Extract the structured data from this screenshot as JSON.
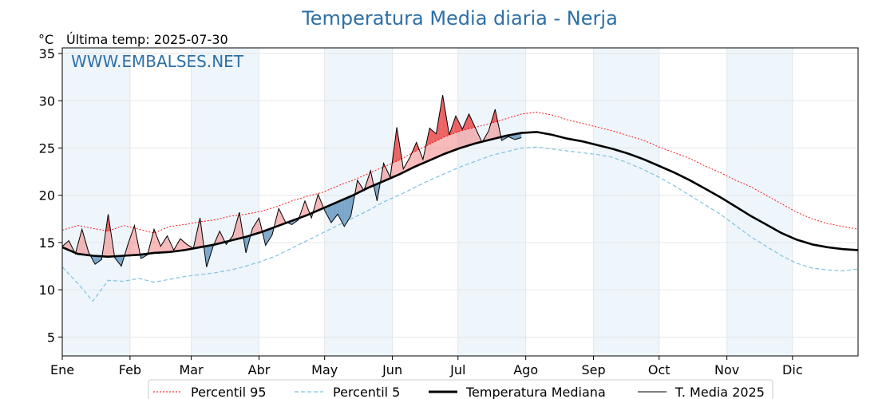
{
  "header": {
    "title": "Temperatura Media diaria - Nerja",
    "unit": "°C",
    "last_temp": "Última temp: 2025-07-30",
    "watermark": "WWW.EMBALSES.NET"
  },
  "colors": {
    "title": "#2e6fa5",
    "p95": "#ff0000",
    "p5": "#7ec3dc",
    "median": "#000000",
    "media2025": "#000000",
    "above_fill": "#f08080",
    "above_fill_strong": "#e8474a",
    "below_fill": "#4682b4",
    "month_band": "#eef5fb",
    "grid": "#e6e6e6"
  },
  "chart_data": {
    "type": "line",
    "title": "Temperatura Media diaria - Nerja",
    "ylabel": "°C",
    "ylim": [
      3,
      35.6
    ],
    "xlim": [
      1,
      365
    ],
    "yticks": [
      5,
      10,
      15,
      20,
      25,
      30,
      35
    ],
    "months": [
      "Ene",
      "Feb",
      "Mar",
      "Abr",
      "May",
      "Jun",
      "Jul",
      "Ago",
      "Sep",
      "Oct",
      "Nov",
      "Dic"
    ],
    "month_start_days": [
      1,
      32,
      60,
      91,
      121,
      152,
      182,
      213,
      244,
      274,
      305,
      335
    ],
    "grid": true,
    "legend_position": "bottom",
    "series": [
      {
        "name": "Percentil 95",
        "style": "dotted-red",
        "x": [
          1,
          8,
          15,
          22,
          29,
          36,
          43,
          50,
          57,
          64,
          71,
          78,
          85,
          92,
          99,
          106,
          113,
          120,
          127,
          134,
          141,
          148,
          155,
          162,
          169,
          176,
          183,
          190,
          197,
          204,
          211,
          218,
          225,
          232,
          239,
          246,
          253,
          260,
          267,
          274,
          281,
          288,
          295,
          302,
          309,
          316,
          323,
          330,
          337,
          344,
          351,
          358,
          365
        ],
        "y": [
          16.3,
          16.8,
          16.5,
          16.2,
          16.8,
          16.4,
          16.0,
          16.7,
          16.9,
          17.2,
          17.4,
          17.8,
          18.0,
          18.3,
          18.8,
          19.4,
          19.9,
          20.3,
          21.0,
          21.6,
          22.3,
          23.0,
          23.7,
          24.6,
          25.4,
          26.2,
          26.8,
          27.2,
          27.6,
          28.1,
          28.6,
          28.8,
          28.5,
          28.0,
          27.6,
          27.2,
          26.8,
          26.3,
          25.8,
          25.1,
          24.5,
          23.9,
          23.1,
          22.4,
          21.6,
          20.9,
          20.0,
          19.1,
          18.2,
          17.5,
          17.0,
          16.7,
          16.4
        ]
      },
      {
        "name": "Percentil 5",
        "style": "dashed-lightblue",
        "x": [
          1,
          8,
          15,
          22,
          29,
          36,
          43,
          50,
          57,
          64,
          71,
          78,
          85,
          92,
          99,
          106,
          113,
          120,
          127,
          134,
          141,
          148,
          155,
          162,
          169,
          176,
          183,
          190,
          197,
          204,
          211,
          218,
          225,
          232,
          239,
          246,
          253,
          260,
          267,
          274,
          281,
          288,
          295,
          302,
          309,
          316,
          323,
          330,
          337,
          344,
          351,
          358,
          365
        ],
        "y": [
          12.4,
          10.7,
          8.8,
          11.0,
          10.9,
          11.2,
          10.8,
          11.1,
          11.4,
          11.6,
          11.8,
          12.1,
          12.5,
          13.0,
          13.6,
          14.4,
          15.2,
          16.0,
          16.8,
          17.6,
          18.4,
          19.3,
          20.0,
          20.8,
          21.6,
          22.3,
          23.0,
          23.6,
          24.2,
          24.6,
          25.0,
          25.1,
          24.9,
          24.7,
          24.5,
          24.3,
          24.0,
          23.4,
          22.7,
          21.9,
          21.0,
          20.0,
          19.0,
          18.0,
          16.8,
          15.6,
          14.6,
          13.6,
          12.8,
          12.3,
          12.1,
          12.0,
          12.2
        ]
      },
      {
        "name": "Temperatura Mediana",
        "style": "thick-black",
        "x": [
          1,
          8,
          15,
          22,
          29,
          36,
          43,
          50,
          57,
          64,
          71,
          78,
          85,
          92,
          99,
          106,
          113,
          120,
          127,
          134,
          141,
          148,
          155,
          162,
          169,
          176,
          183,
          190,
          197,
          204,
          211,
          218,
          225,
          232,
          239,
          246,
          253,
          260,
          267,
          274,
          281,
          288,
          295,
          302,
          309,
          316,
          323,
          330,
          337,
          344,
          351,
          358,
          365
        ],
        "y": [
          14.5,
          13.8,
          13.6,
          13.5,
          13.6,
          13.7,
          13.9,
          14.0,
          14.2,
          14.5,
          14.8,
          15.2,
          15.6,
          16.1,
          16.7,
          17.3,
          17.9,
          18.6,
          19.3,
          20.0,
          20.8,
          21.5,
          22.2,
          23.0,
          23.7,
          24.4,
          25.0,
          25.5,
          25.9,
          26.3,
          26.6,
          26.7,
          26.4,
          26.0,
          25.7,
          25.3,
          24.9,
          24.4,
          23.8,
          23.1,
          22.4,
          21.6,
          20.7,
          19.8,
          18.8,
          17.8,
          16.9,
          16.0,
          15.3,
          14.8,
          14.5,
          14.3,
          14.2
        ]
      },
      {
        "name": "T. Media 2025",
        "style": "thin-black",
        "x": [
          1,
          4,
          7,
          10,
          13,
          16,
          19,
          22,
          25,
          28,
          31,
          34,
          37,
          40,
          43,
          46,
          49,
          52,
          55,
          58,
          61,
          64,
          67,
          70,
          73,
          76,
          79,
          82,
          85,
          88,
          91,
          94,
          97,
          100,
          103,
          106,
          109,
          112,
          115,
          118,
          121,
          124,
          127,
          130,
          133,
          136,
          139,
          142,
          145,
          148,
          151,
          154,
          157,
          160,
          163,
          166,
          169,
          172,
          175,
          178,
          181,
          184,
          187,
          190,
          193,
          196,
          199,
          202,
          205,
          208,
          211
        ],
        "y": [
          14.6,
          15.2,
          13.8,
          16.4,
          14.0,
          12.7,
          13.2,
          18.0,
          13.4,
          12.5,
          14.8,
          16.8,
          13.3,
          13.7,
          16.4,
          14.6,
          15.7,
          14.2,
          15.4,
          14.8,
          14.4,
          17.6,
          12.4,
          14.6,
          16.2,
          14.8,
          15.7,
          18.2,
          13.9,
          16.5,
          17.6,
          14.7,
          15.8,
          18.6,
          17.2,
          16.9,
          17.4,
          19.4,
          17.6,
          20.1,
          18.4,
          17.1,
          18.0,
          16.7,
          17.8,
          21.6,
          20.5,
          22.6,
          19.4,
          23.4,
          21.9,
          27.2,
          22.8,
          24.0,
          25.6,
          23.8,
          27.1,
          26.5,
          30.6,
          26.4,
          28.4,
          27.0,
          28.6,
          27.1,
          25.6,
          26.8,
          29.1,
          25.8,
          26.2,
          25.9,
          26.1
        ]
      }
    ]
  },
  "legend": {
    "items": [
      {
        "label": "Percentil 95"
      },
      {
        "label": "Percentil 5"
      },
      {
        "label": "Temperatura Mediana"
      },
      {
        "label": "T. Media 2025"
      }
    ]
  }
}
